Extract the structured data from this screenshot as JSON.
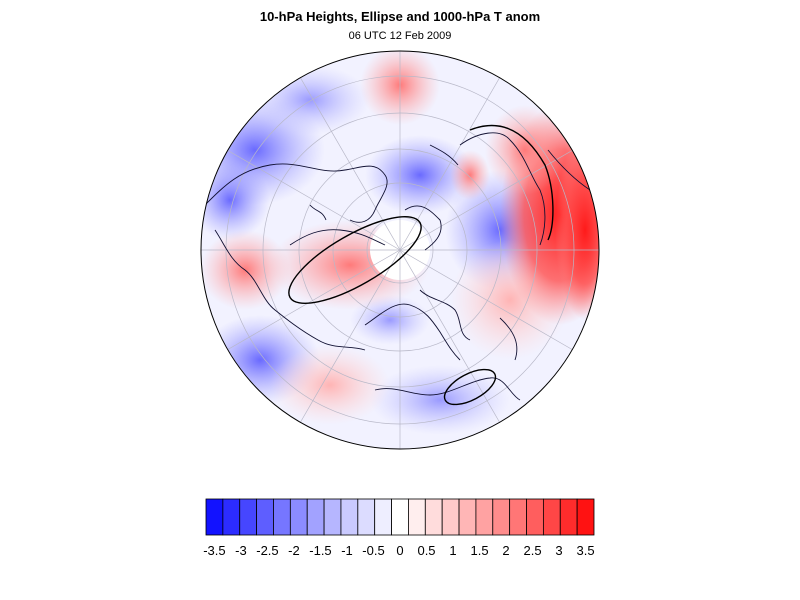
{
  "title": "10-hPa Heights, Ellipse and 1000-hPa T anom",
  "subtitle": "06 UTC 12 Feb 2009",
  "map": {
    "projection": "north-polar-stereographic",
    "field": "1000-hPa temperature anomaly",
    "overlays": [
      "coastlines",
      "lat-lon graticule",
      "10-hPa vortex ellipse"
    ]
  },
  "colorbar": {
    "colors": [
      "#1212ff",
      "#2c2cff",
      "#4646ff",
      "#5e5eff",
      "#7676ff",
      "#8c8cff",
      "#a2a2ff",
      "#b6b6ff",
      "#cacaff",
      "#dcdcff",
      "#eeeeff",
      "#ffffff",
      "#ffeeee",
      "#ffdcdc",
      "#ffcaca",
      "#ffb6b6",
      "#ffa2a2",
      "#ff8c8c",
      "#ff7676",
      "#ff5e5e",
      "#ff4646",
      "#ff2c2c",
      "#ff1212"
    ],
    "tick_labels": [
      "-3.5",
      "-3",
      "-2.5",
      "-2",
      "-1.5",
      "-1",
      "-0.5",
      "0",
      "0.5",
      "1",
      "1.5",
      "2",
      "2.5",
      "3",
      "3.5"
    ]
  }
}
